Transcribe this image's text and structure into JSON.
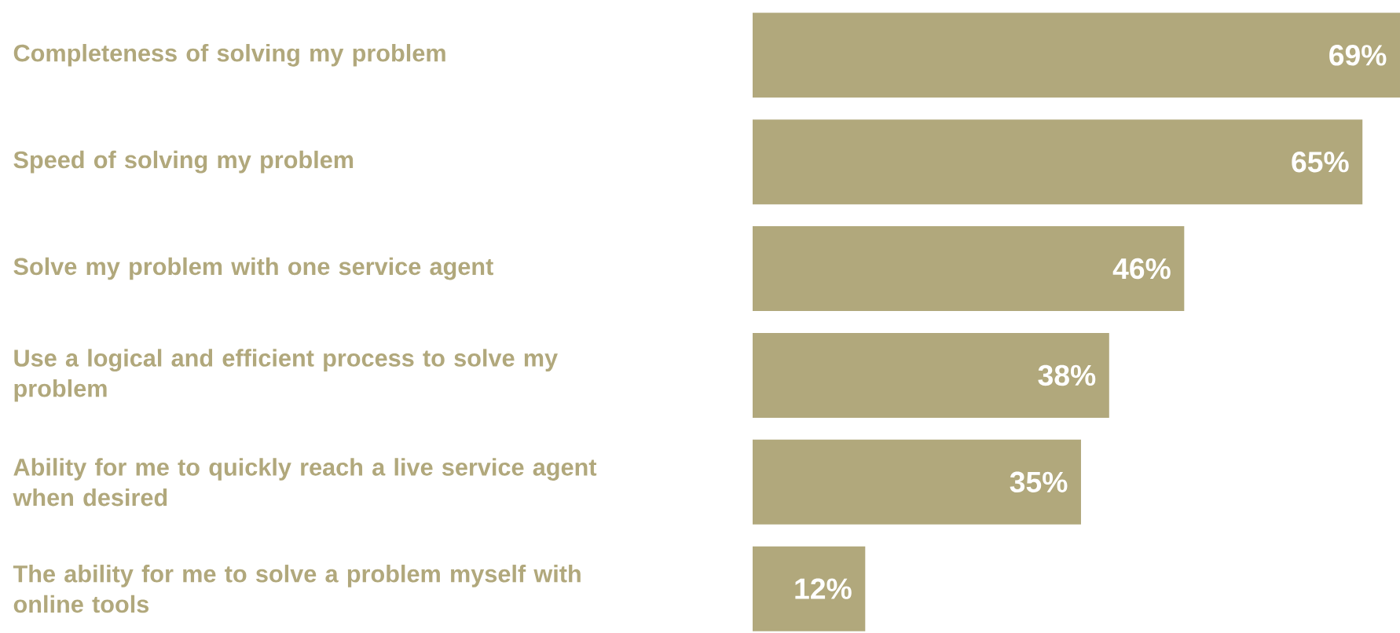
{
  "chart_data": {
    "type": "bar",
    "orientation": "horizontal",
    "categories": [
      "Completeness of solving my problem",
      "Speed of solving my problem",
      "Solve my problem with one service agent",
      "Use a logical and efficient process to solve my problem",
      "Ability for me to quickly reach a live service agent when desired",
      "The ability for me to solve a problem myself with online tools"
    ],
    "values": [
      69,
      65,
      46,
      38,
      35,
      12
    ],
    "value_labels": [
      "69%",
      "65%",
      "46%",
      "38%",
      "35%",
      "12%"
    ],
    "color": "#b1a87c"
  }
}
